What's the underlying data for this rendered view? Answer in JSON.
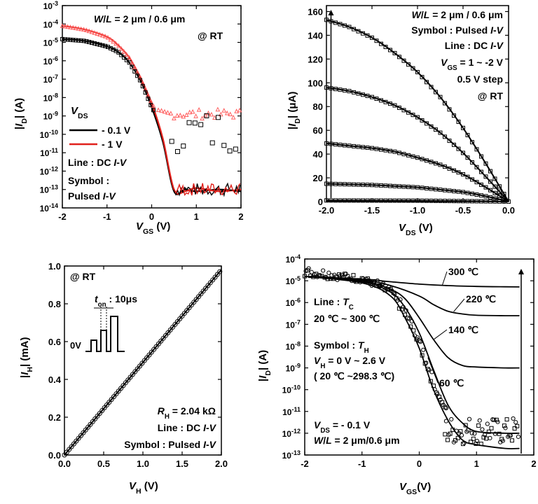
{
  "colors": {
    "black": "#000000",
    "red": "#e0201b",
    "red_light": "#ff6060",
    "axis": "#000000"
  },
  "chart_data": [
    {
      "type": "line",
      "id": "a",
      "xlabel": "VGS (V)",
      "ylabel": "|ID| (A)",
      "x_scale": "linear",
      "y_scale": "log",
      "xlim": [
        -2,
        2
      ],
      "ylim": [
        1e-14,
        0.001
      ],
      "x_ticks": [
        "-2",
        "-1",
        "0",
        "1",
        "2"
      ],
      "y_ticks": [
        "10-14",
        "10-13",
        "10-12",
        "10-11",
        "10-10",
        "10-9",
        "10-8",
        "10-7",
        "10-6",
        "10-5",
        "10-4",
        "10-3"
      ],
      "annotations": [
        "W/L = 2 μm / 0.6 μm",
        "@ RT",
        "Line : DC I-V",
        "Symbol :",
        "Pulsed I-V"
      ],
      "legend_title": "VDS",
      "legend_position": "middle-left",
      "series": [
        {
          "name": "- 0.1 V",
          "color": "#000000",
          "x": [
            -2,
            -1.5,
            -1,
            -0.75,
            -0.5,
            -0.25,
            0,
            0.25,
            0.5,
            0.75,
            1,
            1.5,
            2
          ],
          "y": [
            1.5e-05,
            1.2e-05,
            6e-06,
            3e-06,
            8e-07,
            8e-08,
            3e-09,
            4e-11,
            8e-14,
            1e-13,
            8e-14,
            1e-13,
            8e-14
          ]
        },
        {
          "name": "- 1 V",
          "color": "#e0201b",
          "x": [
            -2,
            -1.5,
            -1,
            -0.75,
            -0.5,
            -0.25,
            0,
            0.25,
            0.5,
            0.75,
            1,
            1.5,
            2
          ],
          "y": [
            8e-05,
            5e-05,
            2e-05,
            7e-06,
            1.5e-06,
            1.2e-07,
            5e-09,
            6e-11,
            1e-13,
            8e-14,
            1.2e-13,
            8e-14,
            1e-13
          ]
        },
        {
          "name": "Pulsed - 1 V",
          "color": "#ff6060",
          "marker": "triangle",
          "x": [
            -2,
            -1.5,
            -1,
            -0.75,
            -0.5,
            -0.25,
            0,
            0.25,
            0.5,
            1,
            1.5,
            2
          ],
          "y": [
            8e-05,
            5e-05,
            2e-05,
            7e-06,
            1.5e-06,
            1.2e-07,
            5e-09,
            6e-10,
            1.5e-09,
            1.5e-09,
            1.2e-09,
            1.4e-09
          ]
        },
        {
          "name": "Pulsed - 0.1 V",
          "color": "#000000",
          "marker": "square",
          "x": [
            -2,
            -1.5,
            -1,
            -0.75,
            -0.5,
            -0.25,
            0,
            0.25,
            0.5,
            0.75,
            1,
            1.5,
            2
          ],
          "y": [
            1.5e-05,
            1.2e-05,
            6e-06,
            3e-06,
            8e-07,
            8e-08,
            3e-09,
            3e-10,
            3e-11,
            8e-11,
            3e-11,
            6e-10,
            4e-10
          ]
        }
      ]
    },
    {
      "type": "line",
      "id": "b",
      "xlabel": "VDS (V)",
      "ylabel": "|ID| (μA)",
      "xlim": [
        -2.0,
        0.0
      ],
      "ylim": [
        0,
        165
      ],
      "x_ticks": [
        "-2.0",
        "-1.5",
        "-1.0",
        "-0.5",
        "0.0"
      ],
      "y_ticks": [
        "0",
        "20",
        "40",
        "60",
        "80",
        "100",
        "120",
        "140",
        "160"
      ],
      "annotations": [
        "W/L = 2 μm / 0.6 μm",
        "Symbol : Pulsed I-V",
        "Line : DC I-V",
        "VGS = 1 ~ -2 V",
        "0.5 V step",
        "@ RT"
      ],
      "series": [
        {
          "name": "VGS = -2 V",
          "x": [
            -2,
            -1.75,
            -1.5,
            -1.25,
            -1,
            -0.75,
            -0.5,
            -0.25,
            0
          ],
          "y": [
            153,
            147,
            138,
            125,
            109,
            88,
            62,
            32,
            0
          ]
        },
        {
          "name": "VGS = -1.5 V",
          "x": [
            -2,
            -1.75,
            -1.5,
            -1.25,
            -1,
            -0.75,
            -0.5,
            -0.25,
            0
          ],
          "y": [
            96,
            93,
            88,
            81,
            71,
            58,
            41,
            21,
            0
          ]
        },
        {
          "name": "VGS = -1 V",
          "x": [
            -2,
            -1.75,
            -1.5,
            -1.25,
            -1,
            -0.75,
            -0.5,
            -0.25,
            0
          ],
          "y": [
            49,
            47,
            45,
            42,
            37,
            31,
            23,
            12,
            0
          ]
        },
        {
          "name": "VGS = -0.5 V",
          "x": [
            -2,
            -1.75,
            -1.5,
            -1.25,
            -1,
            -0.75,
            -0.5,
            -0.25,
            0
          ],
          "y": [
            15,
            14.5,
            14,
            13,
            12,
            10,
            8,
            4.5,
            0
          ]
        },
        {
          "name": "VGS = 0 V",
          "x": [
            -2,
            -1,
            0
          ],
          "y": [
            1,
            0.8,
            0
          ]
        }
      ]
    },
    {
      "type": "line",
      "id": "c",
      "xlabel": "VH (V)",
      "ylabel": "|IH| (mA)",
      "xlim": [
        0,
        2.0
      ],
      "ylim": [
        0,
        1.0
      ],
      "x_ticks": [
        "0.0",
        "0.5",
        "1.0",
        "1.5",
        "2.0"
      ],
      "y_ticks": [
        "0.0",
        "0.2",
        "0.4",
        "0.6",
        "0.8",
        "1.0"
      ],
      "annotations": [
        "@ RT",
        "ton : 10μs",
        "0V",
        "RH = 2.04 kΩ",
        "Line : DC I-V",
        "Symbol : Pulsed I-V"
      ],
      "series": [
        {
          "name": "DC / Pulsed",
          "x": [
            0,
            2.0
          ],
          "y": [
            0,
            0.98
          ]
        }
      ]
    },
    {
      "type": "line",
      "id": "d",
      "xlabel": "VGS(V)",
      "ylabel": "|ID| (A)",
      "x_scale": "linear",
      "y_scale": "log",
      "xlim": [
        -2,
        2
      ],
      "ylim": [
        1e-13,
        0.0001
      ],
      "x_ticks": [
        "-2",
        "-1",
        "0",
        "1",
        "2"
      ],
      "y_ticks": [
        "10-13",
        "10-12",
        "10-11",
        "10-10",
        "10-9",
        "10-8",
        "10-7",
        "10-6",
        "10-5",
        "10-4"
      ],
      "annotations": [
        "Line : TC",
        "20 ℃ ~ 300 ℃",
        "Symbol : TH",
        "VH = 0 V ~ 2.6 V",
        "( 20 ℃ ~298.3 ℃)",
        "VDS = - 0.1 V",
        "W/L = 2 μm/0.6 μm"
      ],
      "curve_labels": [
        "300 ℃",
        "220 ℃",
        "140 ℃",
        "60 ℃"
      ],
      "series": [
        {
          "name": "300 ℃",
          "x": [
            -2,
            -1,
            -0.5,
            0,
            0.5,
            1,
            1.5,
            1.75
          ],
          "y": [
            1.6e-05,
            1.2e-05,
            9e-06,
            7e-06,
            6e-06,
            5.5e-06,
            5.3e-06,
            5.2e-06
          ]
        },
        {
          "name": "220 ℃",
          "x": [
            -2,
            -1,
            -0.5,
            0,
            0.25,
            0.5,
            0.75,
            1,
            1.5,
            1.75
          ],
          "y": [
            1.6e-05,
            1.1e-05,
            6e-06,
            2e-06,
            8e-07,
            4e-07,
            3e-07,
            2.6e-07,
            2.5e-07,
            2.5e-07
          ]
        },
        {
          "name": "140 ℃",
          "x": [
            -2,
            -1,
            -0.5,
            -0.25,
            0,
            0.25,
            0.5,
            0.75,
            1,
            1.5,
            1.75
          ],
          "y": [
            1.6e-05,
            1e-05,
            4e-06,
            1.5e-06,
            2e-07,
            2e-08,
            3e-09,
            1.3e-09,
            1.1e-09,
            1e-09,
            1e-09
          ]
        },
        {
          "name": "60 ℃",
          "x": [
            -2,
            -1,
            -0.5,
            -0.25,
            0,
            0.25,
            0.5,
            0.75,
            1,
            1.5,
            1.75
          ],
          "y": [
            1.6e-05,
            9e-06,
            3e-06,
            6e-07,
            4e-08,
            8e-10,
            2e-11,
            3e-12,
            1.2e-12,
            1e-12,
            1e-12
          ]
        },
        {
          "name": "20 ℃",
          "x": [
            -2,
            -1,
            -0.5,
            -0.25,
            0,
            0.25,
            0.5,
            0.75,
            1,
            1.5,
            1.75
          ],
          "y": [
            1.6e-05,
            8e-06,
            2e-06,
            2e-07,
            8e-09,
            1e-10,
            4e-12,
            5e-13,
            3e-13,
            2e-13,
            2e-13
          ]
        }
      ]
    }
  ],
  "labels": {
    "a_title": "W/L = 2 μm / 0.6 μm",
    "rt": "@ RT",
    "vds": "VDS",
    "leg1": "- 0.1 V",
    "leg2": "- 1 V",
    "a_line": "Line : DC I-V",
    "a_sym1": "Symbol :",
    "a_sym2": "Pulsed I-V",
    "b_l1": "W/L = 2 μm / 0.6 μm",
    "b_l2": "Symbol : Pulsed I-V",
    "b_l3": "Line : DC I-V",
    "b_l4": "VGS = 1 ~ -2 V",
    "b_l5": "0.5 V step",
    "c_ton": "ton : 10μs",
    "c_0v": "0V",
    "c_rh": "RH = 2.04 kΩ",
    "c_sym": "Symbol : Pulsed I-V",
    "d_l1": "Line : TC",
    "d_l2": "20 ℃ ~ 300 ℃",
    "d_l3": "Symbol : TH",
    "d_l4": "VH = 0 V ~ 2.6 V",
    "d_l5": "( 20 ℃ ~298.3 ℃)",
    "d_l6": "VDS = - 0.1 V",
    "d_l7": "W/L = 2 μm/0.6 μm",
    "d_c300": "300 ℃",
    "d_c220": "220 ℃",
    "d_c140": "140 ℃",
    "d_c60": "60 ℃"
  }
}
